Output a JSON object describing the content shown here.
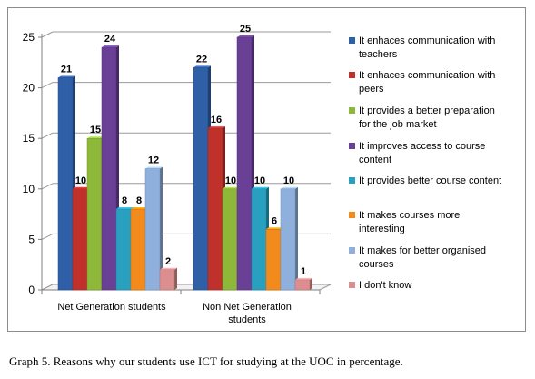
{
  "chart_data": {
    "type": "bar",
    "categories": [
      "Net Generation students",
      "Non Net Generation students"
    ],
    "ylim": [
      0,
      25
    ],
    "yticks": [
      0,
      5,
      10,
      15,
      20,
      25
    ],
    "grid": true,
    "legend_position": "right",
    "series": [
      {
        "name": "It enhaces communication with teachers",
        "values": [
          21,
          22
        ],
        "color": "#2f5fa6"
      },
      {
        "name": "It enhaces communication with peers",
        "values": [
          10,
          16
        ],
        "color": "#c0312b"
      },
      {
        "name": "It provides a better preparation for the job market",
        "values": [
          15,
          10
        ],
        "color": "#8db83a"
      },
      {
        "name": "It improves access to course content",
        "values": [
          24,
          25
        ],
        "color": "#6a3f96"
      },
      {
        "name": "It provides better course content",
        "values": [
          8,
          10
        ],
        "color": "#2aa0c0"
      },
      {
        "name": "It makes courses more interesting",
        "values": [
          8,
          6
        ],
        "color": "#f28a1c"
      },
      {
        "name": "It makes for better organised courses",
        "values": [
          12,
          10
        ],
        "color": "#8fb0dc"
      },
      {
        "name": "I don't know",
        "values": [
          2,
          1
        ],
        "color": "#dc8e8e"
      }
    ]
  },
  "legend_lines": [
    [
      "It enhaces communication with",
      "teachers"
    ],
    [
      "It enhaces communication with",
      "peers"
    ],
    [
      "It provides a better preparation",
      "for the job market"
    ],
    [
      "It improves access to course",
      "content"
    ],
    [
      "It provides better course content"
    ],
    [
      "It makes courses more",
      "interesting"
    ],
    [
      "It makes for better organised",
      "courses"
    ],
    [
      "I don't know"
    ]
  ],
  "category_lines": [
    [
      "Net Generation students"
    ],
    [
      "Non Net Generation",
      "students"
    ]
  ],
  "caption": "Graph 5. Reasons why our students use ICT for studying at the UOC in percentage."
}
